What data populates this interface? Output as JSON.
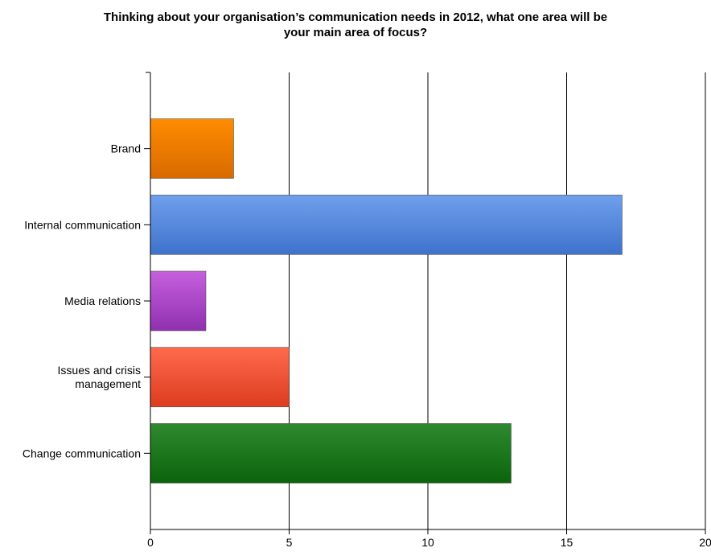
{
  "chart_data": {
    "type": "bar",
    "orientation": "horizontal",
    "title_lines": [
      "Thinking about your organisation’s communication needs in 2012, what one area will be",
      "your main area of focus?"
    ],
    "categories": [
      [
        "Brand"
      ],
      [
        "Internal communication"
      ],
      [
        "Media relations"
      ],
      [
        "Issues and crisis",
        "management"
      ],
      [
        "Change communication"
      ]
    ],
    "values": [
      3,
      17,
      2,
      5,
      13
    ],
    "xlim": [
      0,
      20
    ],
    "xticks": [
      0,
      5,
      10,
      15,
      20
    ],
    "xtick_labels": [
      "0",
      "5",
      "10",
      "15",
      "20"
    ],
    "grid": "vertical",
    "legend": "none",
    "colors": [
      [
        "#ff8c00",
        "#d86a00"
      ],
      [
        "#6fa0ec",
        "#3f72cc"
      ],
      [
        "#c65fdd",
        "#9031b0"
      ],
      [
        "#ff6a4c",
        "#dd3c20"
      ],
      [
        "#2f8a2f",
        "#0b640b"
      ]
    ]
  }
}
